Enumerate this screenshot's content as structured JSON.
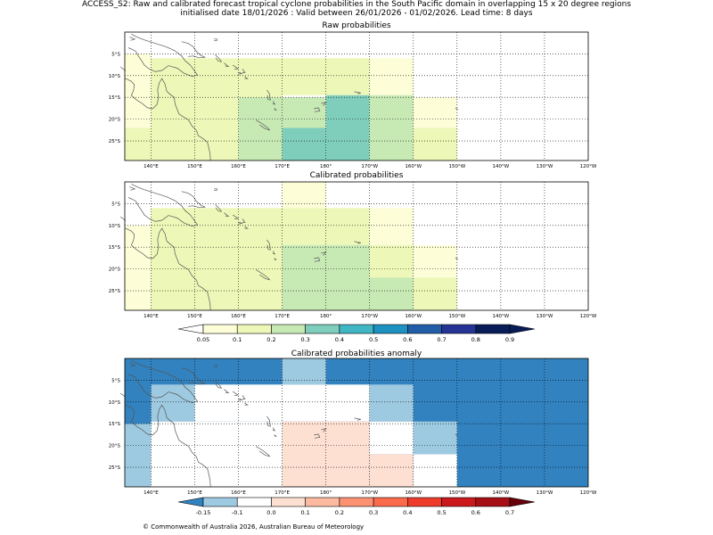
{
  "header": {
    "line1": "ACCESS_S2: Raw and calibrated forecast tropical cyclone probabilities in the South Pacific domain in overlapping 15 x 20 degree regions",
    "line2": "initialised date 18/01/2026 :  Valid between 26/01/2026 - 01/02/2026. Lead time: 8 days"
  },
  "axes": {
    "lon_labels": [
      "140°E",
      "150°E",
      "160°E",
      "170°E",
      "180°",
      "170°W",
      "160°W",
      "150°W",
      "140°W",
      "130°W",
      "120°W"
    ],
    "lat_labels": [
      "5°S",
      "10°S",
      "15°S",
      "20°S",
      "25°S"
    ]
  },
  "prob_colorbar": {
    "ticks": [
      "0.05",
      "0.1",
      "0.2",
      "0.3",
      "0.4",
      "0.5",
      "0.6",
      "0.7",
      "0.8",
      "0.9"
    ],
    "colors": [
      "#ffffff",
      "#fdfed8",
      "#edf8b8",
      "#c7e9b4",
      "#7fcdbb",
      "#41b6c4",
      "#1d91c0",
      "#225ea8",
      "#253494",
      "#081d58",
      "#081d58"
    ]
  },
  "anom_colorbar": {
    "ticks": [
      "-0.15",
      "-0.1",
      "0.0",
      "0.1",
      "0.2",
      "0.3",
      "0.4",
      "0.5",
      "0.6",
      "0.7"
    ],
    "colors": [
      "#3282bf",
      "#9ecae1",
      "#ffffff",
      "#fee0d2",
      "#fcbba1",
      "#fc9272",
      "#fb6a4a",
      "#ef3b2c",
      "#cb181d",
      "#a50f15",
      "#67000d"
    ]
  },
  "panels": [
    {
      "title": "Raw probabilities",
      "regions": [
        {
          "lon0": 134,
          "lon1": 140,
          "lat0": 5,
          "lat1": 22,
          "color": "#fdfed8"
        },
        {
          "lon0": 134,
          "lon1": 140,
          "lat0": 22,
          "lat1": 29.5,
          "color": "#edf8b8"
        },
        {
          "lon0": 140,
          "lon1": 160,
          "lat0": 6,
          "lat1": 29.5,
          "color": "#edf8b8"
        },
        {
          "lon0": 160,
          "lon1": 170,
          "lat0": 6,
          "lat1": 15,
          "color": "#edf8b8"
        },
        {
          "lon0": 170,
          "lon1": 190,
          "lat0": 6,
          "lat1": 14.5,
          "color": "#edf8b8"
        },
        {
          "lon0": 190,
          "lon1": 200,
          "lat0": 6,
          "lat1": 14.5,
          "color": "#fdfed8"
        },
        {
          "lon0": 160,
          "lon1": 170,
          "lat0": 15,
          "lat1": 29.5,
          "color": "#c7e9b4"
        },
        {
          "lon0": 170,
          "lon1": 180,
          "lat0": 15,
          "lat1": 22,
          "color": "#c7e9b4"
        },
        {
          "lon0": 170,
          "lon1": 180,
          "lat0": 22,
          "lat1": 29.5,
          "color": "#7fcdbb"
        },
        {
          "lon0": 180,
          "lon1": 190,
          "lat0": 14.5,
          "lat1": 29.5,
          "color": "#7fcdbb"
        },
        {
          "lon0": 190,
          "lon1": 200,
          "lat0": 14.5,
          "lat1": 29.5,
          "color": "#c7e9b4"
        },
        {
          "lon0": 200,
          "lon1": 210,
          "lat0": 15,
          "lat1": 22,
          "color": "#fdfed8"
        },
        {
          "lon0": 200,
          "lon1": 210,
          "lat0": 22,
          "lat1": 29.5,
          "color": "#edf8b8"
        }
      ]
    },
    {
      "title": "Calibrated probabilities",
      "regions": [
        {
          "lon0": 134,
          "lon1": 140,
          "lat0": 10,
          "lat1": 29.5,
          "color": "#fdfed8"
        },
        {
          "lon0": 170,
          "lon1": 180,
          "lat0": 0,
          "lat1": 6,
          "color": "#fdfed8"
        },
        {
          "lon0": 140,
          "lon1": 170,
          "lat0": 6,
          "lat1": 29.5,
          "color": "#edf8b8"
        },
        {
          "lon0": 170,
          "lon1": 190,
          "lat0": 6,
          "lat1": 14.5,
          "color": "#edf8b8"
        },
        {
          "lon0": 190,
          "lon1": 200,
          "lat0": 6,
          "lat1": 14.5,
          "color": "#fdfed8"
        },
        {
          "lon0": 170,
          "lon1": 190,
          "lat0": 14.5,
          "lat1": 29.5,
          "color": "#c7e9b4"
        },
        {
          "lon0": 190,
          "lon1": 200,
          "lat0": 14.5,
          "lat1": 22,
          "color": "#edf8b8"
        },
        {
          "lon0": 190,
          "lon1": 200,
          "lat0": 22,
          "lat1": 29.5,
          "color": "#c7e9b4"
        },
        {
          "lon0": 200,
          "lon1": 210,
          "lat0": 14.5,
          "lat1": 22,
          "color": "#fdfed8"
        },
        {
          "lon0": 200,
          "lon1": 210,
          "lat0": 22,
          "lat1": 29.5,
          "color": "#edf8b8"
        }
      ]
    },
    {
      "title": "Calibrated probabilities anomaly",
      "regions": [
        {
          "lon0": 134,
          "lon1": 240,
          "lat0": 0,
          "lat1": 29.5,
          "color": "#3282bf"
        },
        {
          "lon0": 170,
          "lon1": 180,
          "lat0": 0,
          "lat1": 6,
          "color": "#9ecae1"
        },
        {
          "lon0": 134,
          "lon1": 140,
          "lat0": 15,
          "lat1": 29.5,
          "color": "#9ecae1"
        },
        {
          "lon0": 140,
          "lon1": 150,
          "lat0": 6,
          "lat1": 14.5,
          "color": "#9ecae1"
        },
        {
          "lon0": 140,
          "lon1": 170,
          "lat0": 14.5,
          "lat1": 29.5,
          "color": "#ffffff"
        },
        {
          "lon0": 150,
          "lon1": 190,
          "lat0": 6,
          "lat1": 14.5,
          "color": "#ffffff"
        },
        {
          "lon0": 190,
          "lon1": 200,
          "lat0": 6,
          "lat1": 14.5,
          "color": "#9ecae1"
        },
        {
          "lon0": 170,
          "lon1": 190,
          "lat0": 14.5,
          "lat1": 29.5,
          "color": "#fee0d2"
        },
        {
          "lon0": 190,
          "lon1": 200,
          "lat0": 14.5,
          "lat1": 22,
          "color": "#ffffff"
        },
        {
          "lon0": 190,
          "lon1": 200,
          "lat0": 22,
          "lat1": 29.5,
          "color": "#fee0d2"
        },
        {
          "lon0": 200,
          "lon1": 210,
          "lat0": 14.5,
          "lat1": 22,
          "color": "#9ecae1"
        },
        {
          "lon0": 200,
          "lon1": 210,
          "lat0": 22,
          "lat1": 29.5,
          "color": "#ffffff"
        }
      ]
    }
  ],
  "footer": {
    "copyright": "© Commonwealth of Australia 2026, Australian Bureau of Meteorology"
  }
}
